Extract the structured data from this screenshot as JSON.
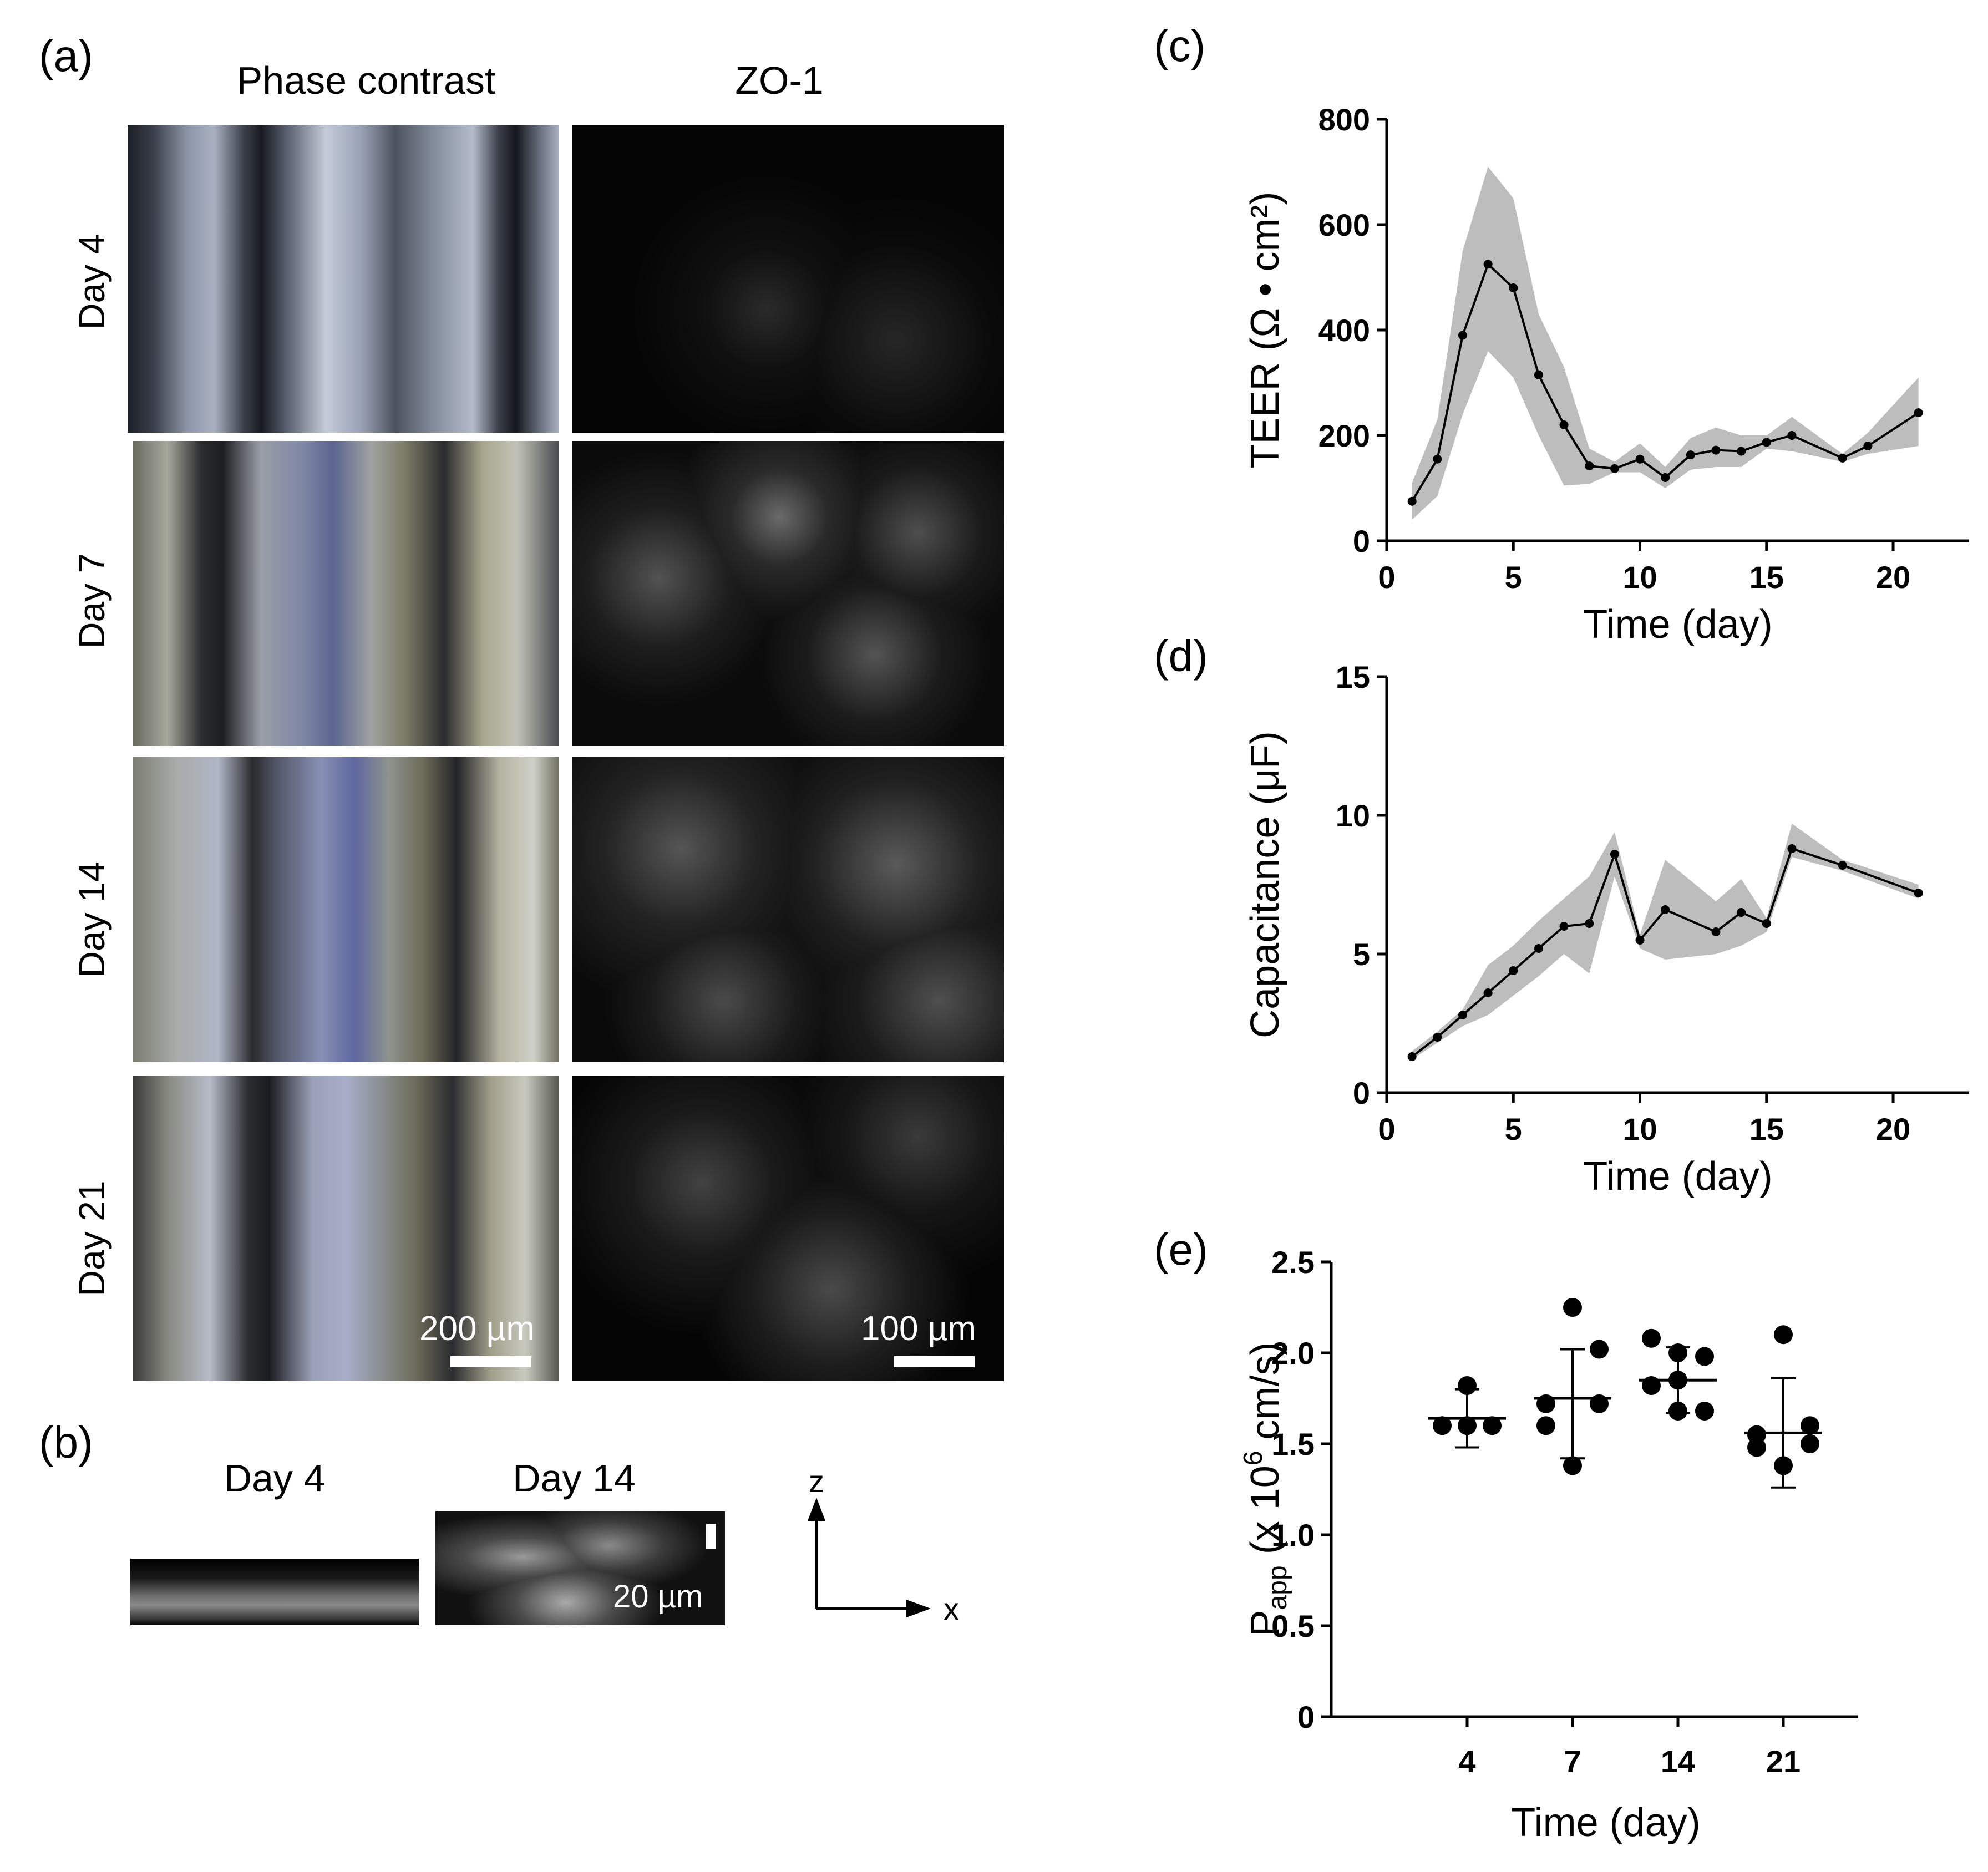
{
  "panel_a": {
    "label": "(a)",
    "columns": [
      "Phase contrast",
      "ZO-1"
    ],
    "rows": [
      "Day 4",
      "Day 7",
      "Day 14",
      "Day 21"
    ],
    "scale_phase": "200 µm",
    "scale_zo1": "100 µm"
  },
  "panel_b": {
    "label": "(b)",
    "titles": [
      "Day 4",
      "Day 14"
    ],
    "scale": "20 µm",
    "axis_z": "z",
    "axis_x": "x"
  },
  "colors": {
    "line": "#000000",
    "band": "#bdbdbd",
    "points": "#000000"
  },
  "chart_data": [
    {
      "panel": "(c)",
      "type": "line",
      "xlabel": "Time (day)",
      "ylabel": "TEER (Ω • cm²)",
      "xlim": [
        0,
        23
      ],
      "ylim": [
        0,
        800
      ],
      "xticks": [
        0,
        5,
        10,
        15,
        20
      ],
      "yticks": [
        0,
        200,
        400,
        600,
        800
      ],
      "x": [
        1,
        2,
        3,
        4,
        5,
        6,
        7,
        8,
        9,
        10,
        11,
        12,
        13,
        14,
        15,
        16,
        18,
        19,
        21
      ],
      "y": [
        75,
        155,
        390,
        525,
        480,
        315,
        220,
        142,
        137,
        155,
        120,
        163,
        172,
        170,
        187,
        200,
        157,
        180,
        243
      ],
      "band_upper": [
        110,
        230,
        550,
        710,
        650,
        430,
        330,
        175,
        150,
        185,
        140,
        195,
        215,
        200,
        200,
        235,
        165,
        205,
        310
      ],
      "band_lower": [
        40,
        85,
        240,
        360,
        310,
        200,
        105,
        108,
        130,
        130,
        100,
        135,
        140,
        140,
        175,
        170,
        150,
        165,
        180
      ]
    },
    {
      "panel": "(d)",
      "type": "line",
      "xlabel": "Time (day)",
      "ylabel": "Capacitance (μF)",
      "xlim": [
        0,
        23
      ],
      "ylim": [
        0,
        15
      ],
      "xticks": [
        0,
        5,
        10,
        15,
        20
      ],
      "yticks": [
        0,
        5,
        10,
        15
      ],
      "x": [
        1,
        2,
        3,
        4,
        5,
        6,
        7,
        8,
        9,
        10,
        11,
        13,
        14,
        15,
        16,
        18,
        21
      ],
      "y": [
        1.3,
        2.0,
        2.8,
        3.6,
        4.4,
        5.2,
        6.0,
        6.1,
        8.6,
        5.5,
        6.6,
        5.8,
        6.5,
        6.1,
        8.8,
        8.2,
        7.2
      ],
      "band_upper": [
        1.5,
        2.2,
        3.0,
        4.6,
        5.3,
        6.2,
        7.0,
        7.8,
        9.4,
        5.7,
        8.4,
        6.9,
        7.7,
        6.3,
        9.7,
        8.4,
        7.5
      ],
      "band_lower": [
        1.2,
        1.8,
        2.4,
        2.8,
        3.5,
        4.2,
        5.0,
        4.3,
        7.8,
        5.2,
        4.8,
        5.0,
        5.3,
        5.8,
        8.5,
        8.0,
        7.0
      ]
    },
    {
      "panel": "(e)",
      "type": "scatter",
      "xlabel": "Time (day)",
      "ylabel": "P_app (x 10⁶ cm/s)",
      "ylabel_main": "P",
      "ylabel_sub": "app",
      "ylabel_rest": " (x 10",
      "ylabel_sup": "6",
      "ylabel_end": " cm/s)",
      "ylim": [
        0,
        2.5
      ],
      "yticks": [
        0,
        0.5,
        1.0,
        1.5,
        2.0,
        2.5
      ],
      "ytick_labels": [
        "0",
        "0.5",
        "1.0",
        "1.5",
        "2.0",
        "2.5"
      ],
      "categories": [
        "4",
        "7",
        "14",
        "21"
      ],
      "points": [
        [
          1.82,
          1.6,
          1.6,
          1.6
        ],
        [
          2.25,
          2.02,
          1.72,
          1.72,
          1.6,
          1.38
        ],
        [
          2.08,
          2.0,
          1.98,
          1.85,
          1.82,
          1.68,
          1.68
        ],
        [
          2.1,
          1.6,
          1.55,
          1.5,
          1.48,
          1.38
        ]
      ],
      "mean": [
        1.64,
        1.75,
        1.85,
        1.56
      ],
      "sd_upper": [
        1.8,
        2.02,
        2.03,
        1.86
      ],
      "sd_lower": [
        1.48,
        1.42,
        1.67,
        1.26
      ]
    }
  ]
}
